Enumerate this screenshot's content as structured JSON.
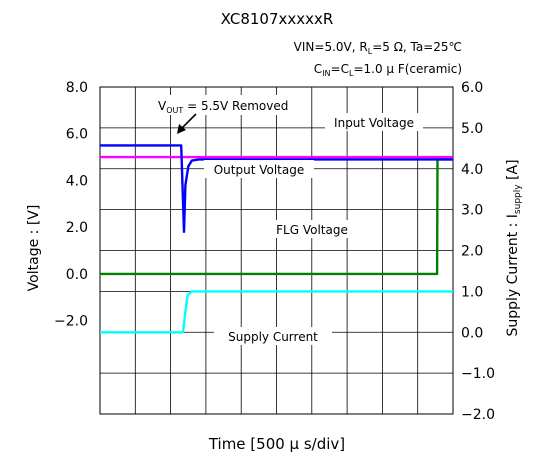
{
  "chart_data": {
    "type": "line",
    "title": "XC8107xxxxxR",
    "conditions_line1": {
      "prefix": "VIN=5.0V, R",
      "sub": "L",
      "suffix": "=5 Ω, Ta=25℃"
    },
    "conditions_line2": {
      "part1": "C",
      "sub1": "IN",
      "part2": "=C",
      "sub2": "L",
      "suffix": "=1.0 μ F(ceramic)"
    },
    "xlabel": "Time [500 μ s/div]",
    "ylabel_left": "Voltage : [V]",
    "ylabel_right": {
      "prefix": "Supply Current : I",
      "sub": "supply",
      "suffix": " [A]"
    },
    "x_divisions": 10,
    "grid": true,
    "ylim_left": [
      -6,
      8
    ],
    "ylim_right": [
      -2,
      6
    ],
    "left_ticks": [
      "8.0",
      "6.0",
      "4.0",
      "2.0",
      "0.0",
      "−2.0"
    ],
    "left_tick_values": [
      8,
      6,
      4,
      2,
      0,
      -2
    ],
    "right_ticks": [
      "6.0",
      "5.0",
      "4.0",
      "3.0",
      "2.0",
      "1.0",
      "0.0",
      "−1.0",
      "−2.0"
    ],
    "right_tick_values": [
      6,
      5,
      4,
      3,
      2,
      1,
      0,
      -1,
      -2
    ],
    "series": [
      {
        "name": "Input Voltage",
        "axis": "left",
        "color": "#ff00ff",
        "x": [
          0,
          2.35,
          2.5,
          10
        ],
        "y": [
          5.0,
          5.0,
          5.0,
          5.0
        ]
      },
      {
        "name": "Output Voltage",
        "axis": "left",
        "color": "#0000ff",
        "x": [
          0,
          2.3,
          2.32,
          2.38,
          2.42,
          2.5,
          2.6,
          2.8,
          10
        ],
        "y": [
          5.5,
          5.5,
          4.6,
          1.8,
          3.8,
          4.6,
          4.85,
          4.9,
          4.9
        ]
      },
      {
        "name": "FLG Voltage",
        "axis": "left",
        "color": "#008000",
        "x": [
          0,
          9.55,
          9.56,
          10
        ],
        "y": [
          0,
          0,
          4.9,
          4.9
        ]
      },
      {
        "name": "Supply Current",
        "axis": "right",
        "color": "#00ffff",
        "x": [
          0,
          2.35,
          2.42,
          2.48,
          2.6,
          10
        ],
        "y": [
          0,
          0,
          0.5,
          0.9,
          1.0,
          1.0
        ]
      }
    ],
    "annotations": {
      "removed": {
        "v": "V",
        "sub": "OUT",
        "rest": " = 5.5V Removed"
      },
      "input_label": "Input Voltage",
      "output_label": "Output Voltage",
      "flg_label": "FLG Voltage",
      "supply_label": "Supply Current"
    }
  }
}
